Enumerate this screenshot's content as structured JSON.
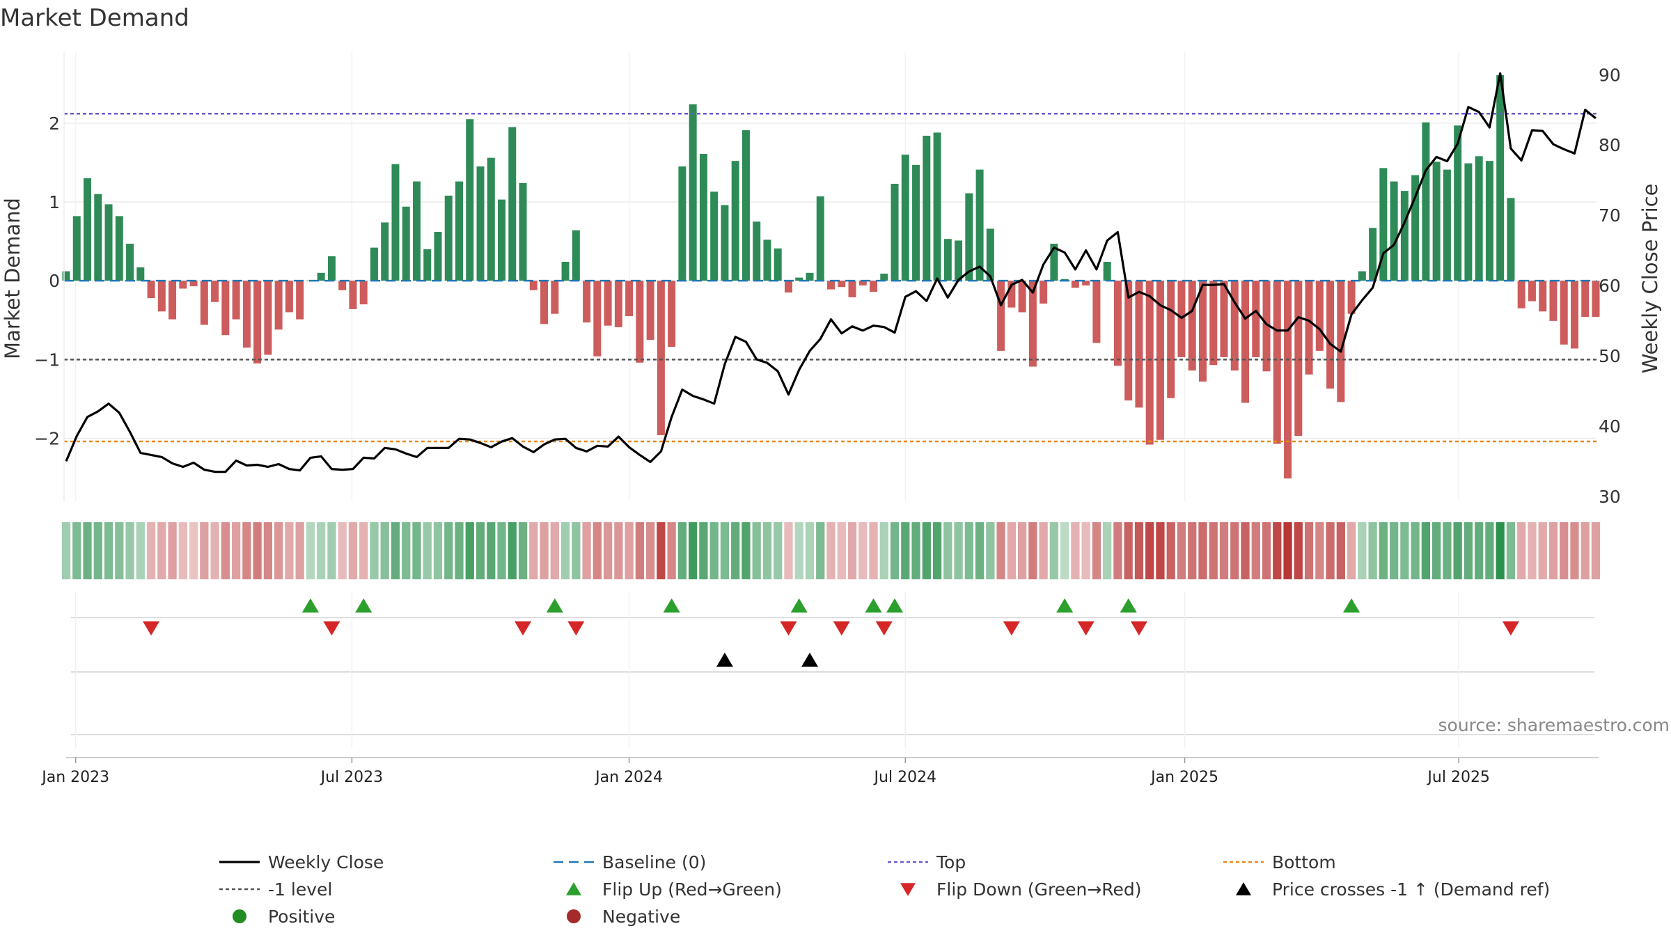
{
  "chart_data": {
    "type": "bar",
    "title": "Market Demand",
    "ylabel": "Market Demand",
    "y2label": "Weekly Close Price",
    "ylim": [
      -2.8,
      2.9
    ],
    "y2lim": [
      29.3,
      93.2
    ],
    "yticks": [
      2,
      1,
      0,
      -1,
      -2
    ],
    "ytick_labels": [
      "2",
      "1",
      "0",
      "−1",
      "−2"
    ],
    "y2ticks": [
      90,
      80,
      70,
      60,
      50,
      40,
      30
    ],
    "y2tick_labels": [
      "90",
      "80",
      "70",
      "60",
      "50",
      "40",
      "30"
    ],
    "x_start": "2022-12-26",
    "x_end": "2025-09-29",
    "xticks": [
      {
        "label": "Jan 2023",
        "week": 0.9
      },
      {
        "label": "Jul 2023",
        "week": 26.9
      },
      {
        "label": "Jan 2024",
        "week": 53.0
      },
      {
        "label": "Jul 2024",
        "week": 79.0
      },
      {
        "label": "Jan 2025",
        "week": 105.3
      },
      {
        "label": "Jul 2025",
        "week": 131.1
      }
    ],
    "reference_lines": {
      "top": 2.12,
      "bottom": -2.04,
      "minus_one": -1.0,
      "baseline": 0
    },
    "demand": [
      0.12,
      0.82,
      1.3,
      1.1,
      0.97,
      0.82,
      0.47,
      0.17,
      -0.22,
      -0.39,
      -0.49,
      -0.1,
      -0.07,
      -0.56,
      -0.27,
      -0.69,
      -0.49,
      -0.85,
      -1.05,
      -0.94,
      -0.62,
      -0.4,
      -0.49,
      0.0,
      0.1,
      0.31,
      -0.12,
      -0.36,
      -0.3,
      0.42,
      0.74,
      1.48,
      0.94,
      1.26,
      0.4,
      0.62,
      1.08,
      1.26,
      2.05,
      1.45,
      1.56,
      1.03,
      1.95,
      1.24,
      -0.12,
      -0.55,
      -0.42,
      0.24,
      0.64,
      -0.53,
      -0.96,
      -0.57,
      -0.59,
      -0.45,
      -1.04,
      -0.75,
      -1.96,
      -0.84,
      1.45,
      2.24,
      1.61,
      1.13,
      0.96,
      1.52,
      1.91,
      0.75,
      0.52,
      0.41,
      -0.15,
      0.04,
      0.1,
      1.07,
      -0.11,
      -0.08,
      -0.21,
      -0.06,
      -0.14,
      0.09,
      1.23,
      1.6,
      1.47,
      1.84,
      1.88,
      0.53,
      0.51,
      1.11,
      1.41,
      0.66,
      -0.89,
      -0.34,
      -0.4,
      -1.09,
      -0.29,
      0.47,
      0.02,
      -0.09,
      -0.06,
      -0.79,
      0.24,
      -1.08,
      -1.52,
      -1.61,
      -2.08,
      -2.02,
      -1.49,
      -0.97,
      -1.14,
      -1.28,
      -1.07,
      -0.97,
      -1.14,
      -1.55,
      -0.97,
      -1.15,
      -2.07,
      -2.51,
      -1.97,
      -1.19,
      -0.89,
      -1.37,
      -1.54,
      -0.42,
      0.12,
      0.67,
      1.43,
      1.26,
      1.14,
      1.34,
      2.01,
      1.51,
      1.41,
      1.97,
      1.49,
      1.58,
      1.52,
      2.61,
      1.05,
      -0.35,
      -0.26,
      -0.39,
      -0.51,
      -0.81,
      -0.86,
      -0.46,
      -0.46
    ],
    "price": [
      35.0,
      38.6,
      41.3,
      42.1,
      43.2,
      41.9,
      39.2,
      36.2,
      35.9,
      35.6,
      34.7,
      34.2,
      34.8,
      33.8,
      33.5,
      33.5,
      35.1,
      34.4,
      34.5,
      34.2,
      34.6,
      33.9,
      33.7,
      35.5,
      35.7,
      33.9,
      33.8,
      33.9,
      35.5,
      35.4,
      36.9,
      36.7,
      36.1,
      35.6,
      36.9,
      36.9,
      36.9,
      38.2,
      38.1,
      37.6,
      37.0,
      37.8,
      38.3,
      37.1,
      36.3,
      37.4,
      38.1,
      38.2,
      36.9,
      36.4,
      37.2,
      37.1,
      38.5,
      37.0,
      35.9,
      34.9,
      36.4,
      41.3,
      45.2,
      44.3,
      43.8,
      43.2,
      48.8,
      52.7,
      52.0,
      49.5,
      49.0,
      47.8,
      44.5,
      48.0,
      50.7,
      52.4,
      55.2,
      53.2,
      54.2,
      53.6,
      54.3,
      54.1,
      53.3,
      58.4,
      59.2,
      57.8,
      61.0,
      58.3,
      60.8,
      62.0,
      62.7,
      61.3,
      57.2,
      60.1,
      60.8,
      59.0,
      63.0,
      65.4,
      64.7,
      62.3,
      65.0,
      62.3,
      66.4,
      67.6,
      58.3,
      59.1,
      58.5,
      57.2,
      56.5,
      55.4,
      56.4,
      60.1,
      60.1,
      60.2,
      57.6,
      55.3,
      56.4,
      54.5,
      53.6,
      53.6,
      55.5,
      55.0,
      53.8,
      51.7,
      50.6,
      55.9,
      57.9,
      59.7,
      64.6,
      65.8,
      69.0,
      72.6,
      76.4,
      78.3,
      77.7,
      80.2,
      85.4,
      84.7,
      82.5,
      90.2,
      79.5,
      77.8,
      82.1,
      82.0,
      80.1,
      79.4,
      78.8,
      85.0,
      83.8
    ],
    "heat_strip": [
      0.35,
      0.55,
      0.65,
      0.6,
      0.55,
      0.5,
      0.4,
      0.3,
      -0.25,
      -0.3,
      -0.35,
      -0.2,
      -0.15,
      -0.35,
      -0.25,
      -0.45,
      -0.35,
      -0.5,
      -0.55,
      -0.5,
      -0.4,
      -0.3,
      -0.35,
      0.25,
      0.3,
      0.35,
      -0.2,
      -0.3,
      -0.25,
      0.4,
      0.5,
      0.7,
      0.55,
      0.6,
      0.4,
      0.45,
      0.6,
      0.65,
      0.85,
      0.7,
      0.75,
      0.6,
      0.85,
      0.65,
      -0.3,
      -0.35,
      -0.3,
      0.35,
      0.45,
      -0.35,
      -0.5,
      -0.4,
      -0.4,
      -0.35,
      -0.55,
      -0.45,
      -0.85,
      -0.5,
      0.7,
      0.9,
      0.75,
      0.6,
      0.55,
      0.7,
      0.8,
      0.5,
      0.45,
      0.4,
      -0.2,
      0.25,
      0.3,
      0.55,
      -0.25,
      -0.2,
      -0.3,
      -0.2,
      -0.25,
      0.3,
      0.6,
      0.75,
      0.7,
      0.8,
      0.8,
      0.45,
      0.45,
      0.55,
      0.65,
      0.45,
      -0.5,
      -0.3,
      -0.35,
      -0.55,
      -0.3,
      0.4,
      0.2,
      -0.25,
      -0.2,
      -0.5,
      0.3,
      -0.55,
      -0.7,
      -0.75,
      -0.85,
      -0.85,
      -0.7,
      -0.55,
      -0.6,
      -0.65,
      -0.6,
      -0.55,
      -0.6,
      -0.7,
      -0.55,
      -0.6,
      -0.85,
      -0.95,
      -0.85,
      -0.6,
      -0.5,
      -0.65,
      -0.7,
      -0.3,
      0.3,
      0.45,
      0.65,
      0.6,
      0.55,
      0.6,
      0.8,
      0.7,
      0.65,
      0.8,
      0.7,
      0.7,
      0.7,
      1.0,
      0.55,
      -0.3,
      -0.25,
      -0.3,
      -0.35,
      -0.45,
      -0.45,
      -0.35,
      -0.35
    ],
    "flip_up_weeks": [
      23,
      28,
      46,
      57,
      69,
      76,
      78,
      94,
      100,
      121
    ],
    "flip_down_weeks": [
      8,
      25,
      43,
      48,
      68,
      73,
      77,
      89,
      96,
      101,
      136
    ],
    "price_cross_weeks": [
      62,
      70
    ],
    "colors": {
      "positive": "#2e8b57",
      "negative": "#cd5c5c",
      "price_line": "#000000",
      "baseline": "#1f77b4",
      "top": "#6a5acd",
      "bottom": "#e8891a",
      "minus_one": "#555555",
      "flip_up": "#2ca02c",
      "flip_down": "#d62728",
      "marker_positive": "#228b22",
      "marker_negative": "#a52a2a"
    },
    "legend": [
      {
        "label": "Weekly Close",
        "kind": "line",
        "color": "#000000"
      },
      {
        "label": "Baseline (0)",
        "kind": "dashed",
        "color": "#1f77b4"
      },
      {
        "label": "Top",
        "kind": "dotted",
        "color": "#6a5acd"
      },
      {
        "label": "Bottom",
        "kind": "dotted",
        "color": "#e8891a"
      },
      {
        "label": "-1 level",
        "kind": "dotted",
        "color": "#555555"
      },
      {
        "label": "Flip Up (Red→Green)",
        "kind": "tri-up",
        "color": "#2ca02c"
      },
      {
        "label": "Flip Down (Green→Red)",
        "kind": "tri-down",
        "color": "#d62728"
      },
      {
        "label": "Price crosses -1 ↑ (Demand ref)",
        "kind": "tri-up",
        "color": "#000000"
      },
      {
        "label": "Positive",
        "kind": "dot",
        "color": "#228b22"
      },
      {
        "label": "Negative",
        "kind": "dot",
        "color": "#a52a2a"
      }
    ],
    "legend_position": "bottom",
    "source": "source: sharemaestro.com"
  }
}
